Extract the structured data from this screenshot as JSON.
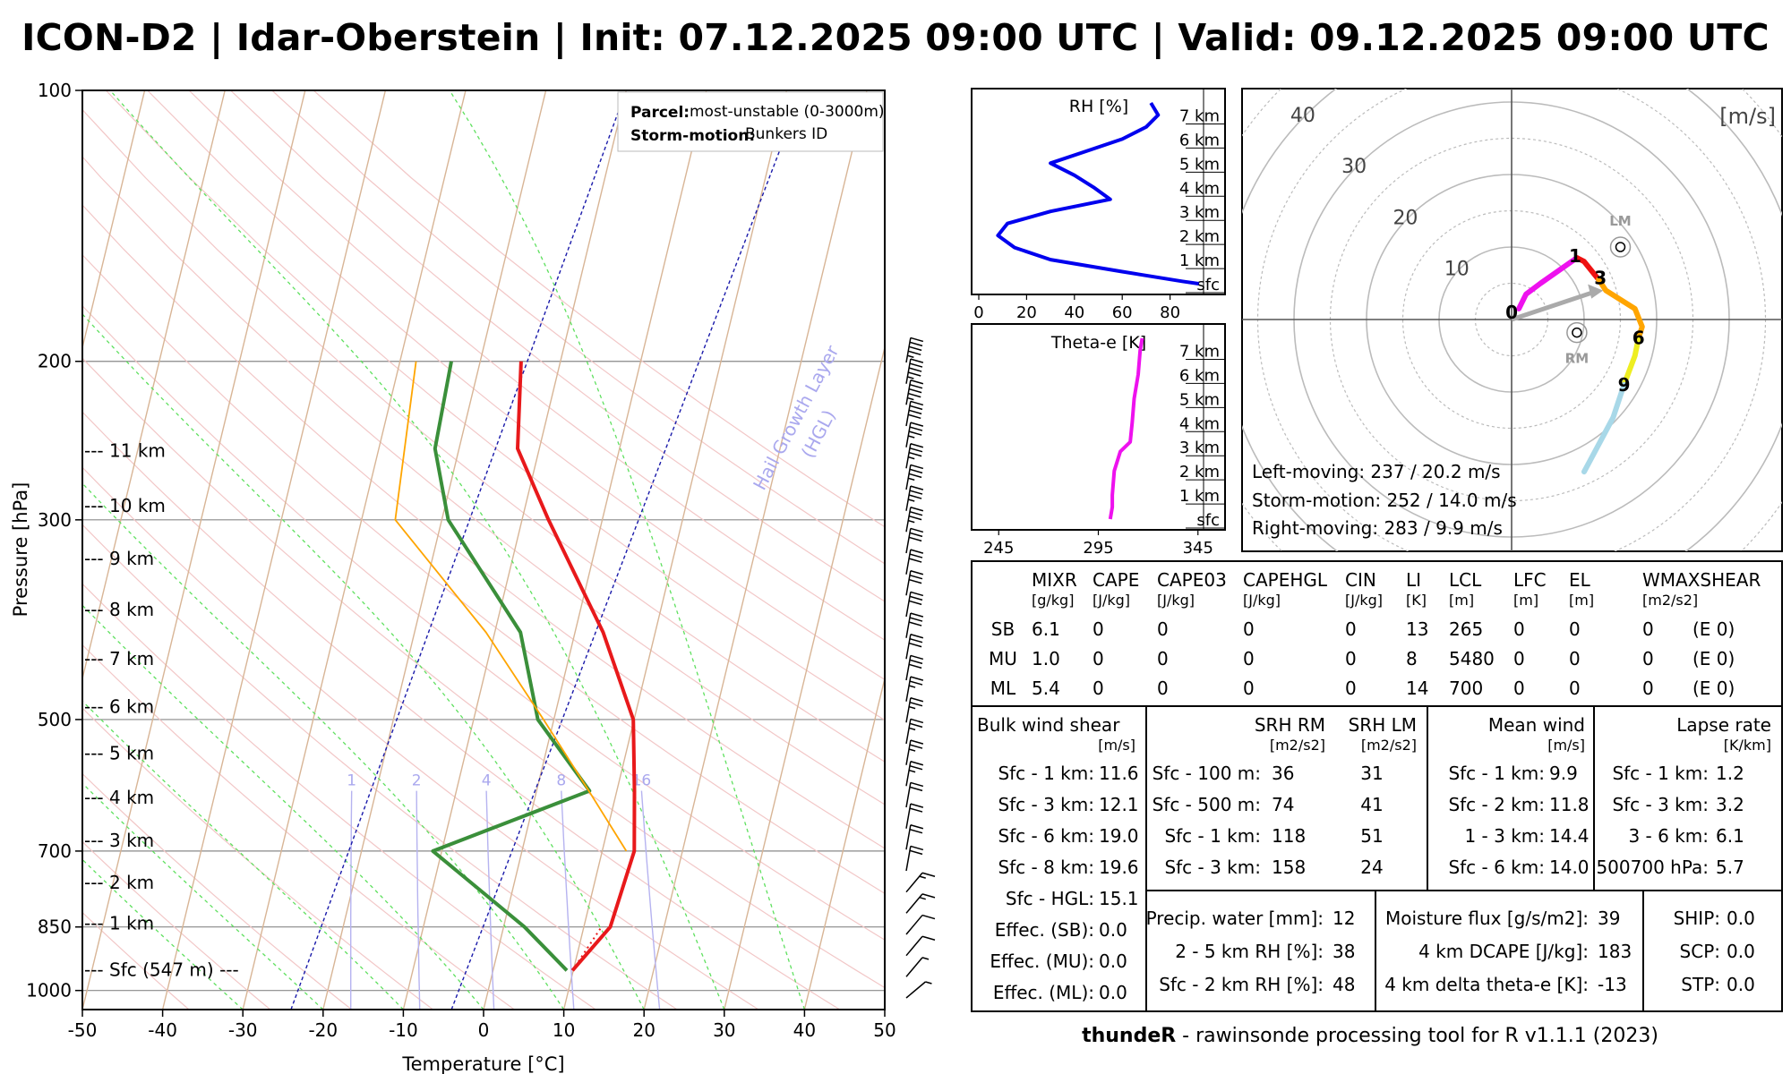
{
  "title": "ICON-D2 | Idar-Oberstein | Init: 07.12.2025 09:00 UTC | Valid: 09.12.2025 09:00 UTC",
  "footer": {
    "name": "thundeR",
    "text": " - rawinsonde processing tool for R v1.1.1 (2023)"
  },
  "chart_data": [
    {
      "type": "line",
      "name": "skew-T log-p diagram",
      "xlabel": "Temperature [°C]",
      "ylabel": "Pressure [hPa]",
      "xlim": [
        -50,
        50
      ],
      "ylim": [
        1050,
        100
      ],
      "x_ticks": [
        -50,
        -40,
        -30,
        -20,
        -10,
        0,
        10,
        20,
        30,
        40,
        50
      ],
      "p_ticks": [
        100,
        200,
        300,
        500,
        700,
        850,
        1000
      ],
      "height_labels": [
        {
          "label": "--- Sfc (547 m) ---",
          "p": 950
        },
        {
          "label": "--- 1 km",
          "p": 844
        },
        {
          "label": "--- 2 km",
          "p": 760
        },
        {
          "label": "--- 3 km",
          "p": 683
        },
        {
          "label": "--- 4 km",
          "p": 612
        },
        {
          "label": "--- 5 km",
          "p": 546
        },
        {
          "label": "--- 6 km",
          "p": 485
        },
        {
          "label": "--- 7 km",
          "p": 429
        },
        {
          "label": "--- 8 km",
          "p": 378
        },
        {
          "label": "--- 9 km",
          "p": 332
        },
        {
          "label": "--- 10 km",
          "p": 290
        },
        {
          "label": "--- 11 km",
          "p": 252
        }
      ],
      "mixing_ratio_labels": [
        "1",
        "2",
        "4",
        "8",
        "16"
      ],
      "hgl_label": "Hail Growth Layer (HGL)",
      "legend": {
        "parcel_label": "Parcel:",
        "parcel_value": "most-unstable (0-3000m)",
        "storm_label": "Storm-motion:",
        "storm_value": "Bunkers ID"
      },
      "series": [
        {
          "name": "Temperature",
          "color": "#e8191b",
          "points": [
            [
              9.9,
              950
            ],
            [
              13.3,
              850
            ],
            [
              14.0,
              700
            ],
            [
              12.2,
              600
            ],
            [
              9.9,
              500
            ],
            [
              3.5,
              400
            ],
            [
              -6.7,
              300
            ],
            [
              -12.7,
              250
            ],
            [
              -14.9,
              200
            ]
          ]
        },
        {
          "name": "Dew point",
          "color": "#3a8f3a",
          "points": [
            [
              9.2,
              950
            ],
            [
              2.6,
              850
            ],
            [
              -11.1,
              700
            ],
            [
              6.6,
              600
            ],
            [
              -2.0,
              500
            ],
            [
              -6.8,
              400
            ],
            [
              -19.2,
              300
            ],
            [
              -23.0,
              250
            ],
            [
              -23.6,
              200
            ]
          ]
        },
        {
          "name": "Parcel",
          "color": "#ffa500",
          "points": [
            [
              13.0,
              700
            ],
            [
              6.5,
              600
            ],
            [
              -1.3,
              500
            ],
            [
              -11.1,
              400
            ],
            [
              -25.8,
              300
            ],
            [
              -28.0,
              200
            ]
          ]
        }
      ],
      "wind_barbs_speed_kt": [
        5,
        9,
        10,
        12,
        16,
        19,
        21,
        22,
        24,
        24,
        26,
        26,
        27,
        28,
        28,
        30,
        30,
        31,
        32,
        33,
        33,
        34,
        35,
        36,
        36,
        38,
        38,
        40,
        45,
        45,
        45
      ]
    },
    {
      "type": "line",
      "name": "RH profile",
      "title": "RH [%]",
      "x_ticks": [
        0,
        20,
        40,
        60,
        80
      ],
      "xlim": [
        0,
        100
      ],
      "height_labels": [
        "7 km",
        "6 km",
        "5 km",
        "4 km",
        "3 km",
        "2 km",
        "1 km",
        "sfc"
      ],
      "color": "#0000ee",
      "points": [
        [
          92,
          0
        ],
        [
          85,
          0.1
        ],
        [
          60,
          0.5
        ],
        [
          30,
          1
        ],
        [
          15,
          1.5
        ],
        [
          8,
          2
        ],
        [
          12,
          2.5
        ],
        [
          30,
          3
        ],
        [
          55,
          3.5
        ],
        [
          48,
          4
        ],
        [
          40,
          4.5
        ],
        [
          30,
          5
        ],
        [
          45,
          5.5
        ],
        [
          60,
          6
        ],
        [
          70,
          6.5
        ],
        [
          75,
          7
        ],
        [
          72,
          7.5
        ]
      ]
    },
    {
      "type": "line",
      "name": "Theta-e profile",
      "title": "Theta-e [K]",
      "x_ticks": [
        245,
        295,
        345
      ],
      "xlim": [
        235,
        355
      ],
      "height_labels": [
        "7 km",
        "6 km",
        "5 km",
        "4 km",
        "3 km",
        "2 km",
        "1 km",
        "sfc"
      ],
      "color": "#ee11ee",
      "points": [
        [
          301,
          0
        ],
        [
          302,
          0.5
        ],
        [
          302,
          1
        ],
        [
          303,
          2
        ],
        [
          306,
          2.8
        ],
        [
          311,
          3.2
        ],
        [
          312,
          4
        ],
        [
          313,
          5
        ],
        [
          315,
          6
        ],
        [
          316,
          7
        ],
        [
          317,
          7.5
        ]
      ]
    },
    {
      "type": "hodograph",
      "unit_label": "[m/s]",
      "ring_labels": [
        "10",
        "20",
        "30",
        "40"
      ],
      "height_markers": [
        "0",
        "1",
        "3",
        "6",
        "9"
      ],
      "motion_labels": [
        "LM",
        "RM"
      ],
      "segments": [
        {
          "color": "#ee11ee",
          "points": [
            [
              1,
              1.5
            ],
            [
              2,
              3.5
            ],
            [
              4,
              5
            ],
            [
              9,
              8.5
            ]
          ]
        },
        {
          "color": "#ee1111",
          "points": [
            [
              9,
              8.5
            ],
            [
              10,
              8
            ],
            [
              12,
              5.5
            ]
          ]
        },
        {
          "color": "#ffa500",
          "points": [
            [
              12,
              5.5
            ],
            [
              13,
              4
            ],
            [
              17,
              1.5
            ],
            [
              18,
              -1
            ],
            [
              17.5,
              -2.5
            ]
          ]
        },
        {
          "color": "#eeee22",
          "points": [
            [
              17.5,
              -2.5
            ],
            [
              17,
              -5
            ],
            [
              15.5,
              -9
            ]
          ]
        },
        {
          "color": "#a8d8e8",
          "points": [
            [
              15.5,
              -9
            ],
            [
              14,
              -13.5
            ],
            [
              10,
              -21
            ]
          ]
        }
      ],
      "markers": [
        [
          1,
          1.5
        ],
        [
          9,
          8.5
        ],
        [
          12,
          5.5
        ],
        [
          17.5,
          -2.5
        ],
        [
          15.5,
          -9
        ]
      ],
      "storm_motion": [
        12,
        4
      ],
      "left_moving": [
        15,
        10
      ],
      "right_moving": [
        9,
        -1.8
      ],
      "texts": [
        "Left-moving: 237 / 20.2 m/s",
        "Storm-motion: 252 / 14.0 m/s",
        "Right-moving: 283 / 9.9 m/s"
      ]
    },
    {
      "type": "table",
      "name": "parcel indices",
      "headers": [
        {
          "n": "MIXR",
          "u": "[g/kg]"
        },
        {
          "n": "CAPE",
          "u": "[J/kg]"
        },
        {
          "n": "CAPE03",
          "u": "[J/kg]"
        },
        {
          "n": "CAPEHGL",
          "u": "[J/kg]"
        },
        {
          "n": "CIN",
          "u": "[J/kg]"
        },
        {
          "n": "LI",
          "u": "[K]"
        },
        {
          "n": "LCL",
          "u": "[m]"
        },
        {
          "n": "LFC",
          "u": "[m]"
        },
        {
          "n": "EL",
          "u": "[m]"
        },
        {
          "n": "WMAXSHEAR",
          "u": "[m2/s2]"
        }
      ],
      "rows": [
        {
          "label": "SB",
          "values": [
            "6.1",
            "0",
            "0",
            "0",
            "0",
            "13",
            "265",
            "0",
            "0",
            "0",
            "(E 0)"
          ]
        },
        {
          "label": "MU",
          "values": [
            "1.0",
            "0",
            "0",
            "0",
            "0",
            "8",
            "5480",
            "0",
            "0",
            "0",
            "(E 0)"
          ]
        },
        {
          "label": "ML",
          "values": [
            "5.4",
            "0",
            "0",
            "0",
            "0",
            "14",
            "700",
            "0",
            "0",
            "0",
            "(E 0)"
          ]
        }
      ]
    },
    {
      "type": "table",
      "name": "kinematic parameters",
      "bulk": {
        "title": "Bulk wind shear",
        "unit": "[m/s]",
        "rows": [
          [
            "Sfc - 1 km:",
            "11.6"
          ],
          [
            "Sfc - 3 km:",
            "12.1"
          ],
          [
            "Sfc - 6 km:",
            "19.0"
          ],
          [
            "Sfc - 8 km:",
            "19.6"
          ],
          [
            "Sfc - HGL:",
            "15.1"
          ],
          [
            "Effec. (SB):",
            "0.0"
          ],
          [
            "Effec. (MU):",
            "0.0"
          ],
          [
            "Effec. (ML):",
            "0.0"
          ]
        ]
      },
      "srh": {
        "h1": "SRH RM",
        "h2": "SRH LM",
        "u1": "[m2/s2]",
        "u2": "[m2/s2]",
        "rows": [
          [
            "Sfc - 100 m:",
            "36",
            "31"
          ],
          [
            "Sfc - 500 m:",
            "74",
            "41"
          ],
          [
            "Sfc - 1 km:",
            "118",
            "51"
          ],
          [
            "Sfc - 3 km:",
            "158",
            "24"
          ]
        ]
      },
      "mean": {
        "title": "Mean wind",
        "unit": "[m/s]",
        "rows": [
          [
            "Sfc - 1 km:",
            "9.9"
          ],
          [
            "Sfc - 2 km:",
            "11.8"
          ],
          [
            "1 - 3 km:",
            "14.4"
          ],
          [
            "Sfc - 6 km:",
            "14.0"
          ]
        ]
      },
      "lapse": {
        "title": "Lapse rate",
        "unit": "[K/km]",
        "rows": [
          [
            "Sfc - 1 km:",
            "1.2"
          ],
          [
            "Sfc - 3 km:",
            "3.2"
          ],
          [
            "3 - 6 km:",
            "6.1"
          ],
          [
            "500700 hPa:",
            "5.7"
          ]
        ]
      },
      "moist1": [
        [
          "Precip. water [mm]:",
          "12"
        ],
        [
          "2 - 5 km RH [%]:",
          "38"
        ],
        [
          "Sfc - 2 km RH [%]:",
          "48"
        ]
      ],
      "moist2": [
        [
          "Moisture flux [g/s/m2]:",
          "39"
        ],
        [
          "4 km DCAPE [J/kg]:",
          "183"
        ],
        [
          "4 km delta theta-e [K]:",
          "-13"
        ]
      ],
      "composite": [
        [
          "SHIP:",
          "0.0"
        ],
        [
          "SCP:",
          "0.0"
        ],
        [
          "STP:",
          "0.0"
        ]
      ]
    }
  ]
}
